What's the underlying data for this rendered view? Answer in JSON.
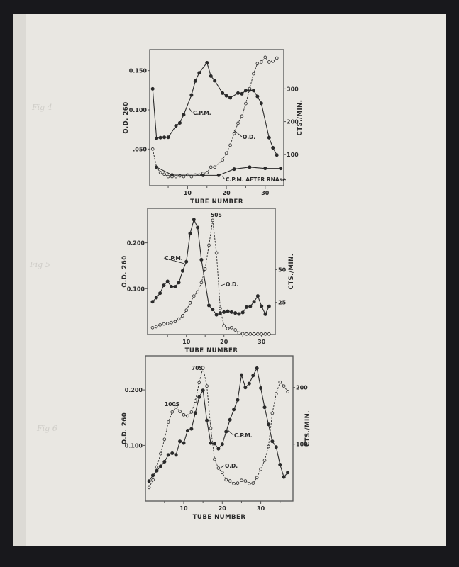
{
  "page": {
    "background": "#18181c",
    "paper": "#e9e7e2",
    "ink": "#2a2a2a"
  },
  "chart_data": [
    {
      "type": "line",
      "handwritten_label": "Fig 4",
      "xlabel": "TUBE NUMBER",
      "ylabel_left": "O.D. 260",
      "ylabel_right": "CTS./MIN.",
      "xticks": [
        10,
        20,
        30
      ],
      "yticks_left": [
        {
          "v": 0.15,
          "t": "0.150"
        },
        {
          "v": 0.1,
          "t": "0.100"
        },
        {
          "v": 0.05,
          "t": ".050"
        }
      ],
      "yticks_right": [
        {
          "v": 300,
          "t": "300"
        },
        {
          "v": 200,
          "t": "200"
        },
        {
          "v": 100,
          "t": "100"
        }
      ],
      "grid": false,
      "series": [
        {
          "name": "C.P.M.",
          "axis": "right",
          "marker": "filled",
          "line": "solid",
          "x": [
            1,
            2,
            3,
            4,
            5,
            7,
            8,
            9,
            11,
            12,
            13,
            15,
            16,
            17,
            19,
            20,
            21,
            23,
            24,
            25,
            26,
            27,
            28,
            29,
            31,
            32,
            33
          ],
          "y": [
            300,
            149,
            151,
            152,
            152,
            187,
            196,
            221,
            281,
            324,
            349,
            380,
            339,
            325,
            287,
            279,
            273,
            287,
            285,
            295,
            296,
            295,
            277,
            256,
            151,
            120,
            98
          ]
        },
        {
          "name": "O.D.",
          "axis": "left",
          "marker": "open",
          "line": "dashed",
          "x": [
            1,
            2,
            3,
            4,
            5,
            6,
            7,
            8,
            9,
            10,
            11,
            12,
            13,
            14,
            15,
            16,
            17,
            19,
            20,
            21,
            22,
            23,
            24,
            25,
            26,
            27,
            28,
            29,
            30,
            31,
            32,
            33
          ],
          "y": [
            0.05,
            0.027,
            0.02,
            0.018,
            0.015,
            0.015,
            0.015,
            0.016,
            0.015,
            0.017,
            0.015,
            0.017,
            0.017,
            0.019,
            0.02,
            0.027,
            0.027,
            0.036,
            0.045,
            0.055,
            0.07,
            0.083,
            0.092,
            0.108,
            0.127,
            0.146,
            0.159,
            0.161,
            0.167,
            0.161,
            0.162,
            0.166
          ]
        },
        {
          "name": "C.P.M. AFTER RNAse",
          "axis": "right",
          "marker": "filled",
          "line": "solid",
          "x": [
            2,
            6,
            14,
            18,
            22,
            26,
            30,
            34
          ],
          "y": [
            61,
            37,
            36,
            36,
            55,
            61,
            57,
            57
          ]
        }
      ],
      "annotations": [
        {
          "text": "C.P.M."
        },
        {
          "text": "O.D."
        },
        {
          "text": "C.P.M. AFTER RNAse"
        }
      ]
    },
    {
      "type": "line",
      "handwritten_label": "Fig 5",
      "xlabel": "TUBE NUMBER",
      "ylabel_left": "O.D. 260",
      "ylabel_right": "CTS./MIN.",
      "xticks": [
        10,
        20,
        30
      ],
      "yticks_left": [
        {
          "v": 0.2,
          "t": "0.200"
        },
        {
          "v": 0.1,
          "t": "0.100"
        }
      ],
      "yticks_right": [
        {
          "v": 50,
          "t": "50"
        },
        {
          "v": 25,
          "t": "25"
        }
      ],
      "grid": false,
      "series": [
        {
          "name": "C.P.M.",
          "axis": "right",
          "marker": "filled",
          "line": "solid",
          "x": [
            1,
            2,
            3,
            4,
            5,
            6,
            7,
            8,
            9,
            10,
            11,
            12,
            13,
            14,
            16,
            17,
            18,
            19,
            20,
            21,
            22,
            23,
            24,
            25,
            26,
            27,
            28,
            29,
            30,
            31,
            32
          ],
          "y": [
            25.5,
            28.6,
            32,
            38,
            41,
            37,
            37,
            40,
            49,
            56,
            77.5,
            88,
            82,
            57.5,
            22.7,
            19.6,
            15.6,
            16.9,
            17.6,
            18.3,
            17.6,
            16.9,
            16.2,
            17.3,
            21.4,
            22,
            25.5,
            29.9,
            22.1,
            16,
            22
          ]
        },
        {
          "name": "O.D.",
          "axis": "left",
          "marker": "open",
          "line": "dashed",
          "x": [
            1,
            2,
            3,
            4,
            5,
            6,
            7,
            8,
            9,
            10,
            11,
            12,
            13,
            14,
            15,
            16,
            17,
            18,
            19,
            20,
            21,
            22,
            23,
            24,
            25,
            26,
            27,
            28,
            29,
            30,
            31,
            32
          ],
          "y": [
            0.015,
            0.017,
            0.021,
            0.023,
            0.024,
            0.026,
            0.028,
            0.034,
            0.041,
            0.053,
            0.069,
            0.084,
            0.093,
            0.113,
            0.143,
            0.195,
            0.249,
            0.178,
            0.057,
            0.019,
            0.013,
            0.015,
            0.01,
            0.003,
            0.002,
            0.001,
            0.001,
            0.001,
            0.001,
            0.001,
            0.001,
            0.001
          ]
        }
      ],
      "annotations": [
        {
          "text": "50S"
        },
        {
          "text": "C.P.M."
        },
        {
          "text": "O.D."
        }
      ]
    },
    {
      "type": "line",
      "handwritten_label": "Fig 6",
      "xlabel": "TUBE NUMBER",
      "ylabel_left": "O.D. 260",
      "ylabel_right": "CTS./MIN.",
      "xticks": [
        10,
        20,
        30
      ],
      "yticks_left": [
        {
          "v": 0.2,
          "t": "0.200"
        },
        {
          "v": 0.1,
          "t": "0.100"
        }
      ],
      "yticks_right": [
        {
          "v": 200,
          "t": "200"
        },
        {
          "v": 100,
          "t": "100"
        }
      ],
      "grid": false,
      "series": [
        {
          "name": "C.P.M.",
          "axis": "right",
          "marker": "filled",
          "line": "solid",
          "x": [
            1,
            2,
            3,
            4,
            5,
            6,
            7,
            8,
            9,
            10,
            11,
            12,
            13,
            14,
            15,
            16,
            17,
            18,
            19,
            20,
            21,
            22,
            23,
            24,
            25,
            26,
            27,
            28,
            29,
            30,
            31,
            32,
            33,
            34,
            35,
            36,
            37
          ],
          "y": [
            35,
            45,
            53,
            61,
            69,
            81,
            84,
            81,
            105,
            102,
            124,
            127,
            155,
            183,
            195,
            142,
            102,
            101,
            92,
            100,
            122,
            143,
            161,
            178,
            222,
            200,
            207,
            221,
            234,
            199,
            165,
            135,
            105,
            95,
            64,
            42,
            50
          ]
        },
        {
          "name": "O.D.",
          "axis": "left",
          "marker": "open",
          "line": "dashed",
          "x": [
            1,
            2,
            3,
            4,
            5,
            6,
            7,
            8,
            9,
            10,
            11,
            12,
            13,
            14,
            15,
            16,
            17,
            18,
            19,
            20,
            21,
            22,
            23,
            24,
            25,
            26,
            27,
            28,
            29,
            30,
            31,
            32,
            33,
            34,
            35,
            36,
            37
          ],
          "y": [
            0.024,
            0.038,
            0.061,
            0.085,
            0.111,
            0.142,
            0.16,
            0.169,
            0.161,
            0.155,
            0.153,
            0.16,
            0.18,
            0.213,
            0.24,
            0.207,
            0.131,
            0.075,
            0.059,
            0.051,
            0.038,
            0.036,
            0.031,
            0.032,
            0.037,
            0.036,
            0.031,
            0.032,
            0.042,
            0.057,
            0.073,
            0.098,
            0.158,
            0.193,
            0.214,
            0.207,
            0.197
          ]
        }
      ],
      "annotations": [
        {
          "text": "70S"
        },
        {
          "text": "100S"
        },
        {
          "text": "C.P.M."
        },
        {
          "text": "O.D."
        }
      ]
    }
  ]
}
